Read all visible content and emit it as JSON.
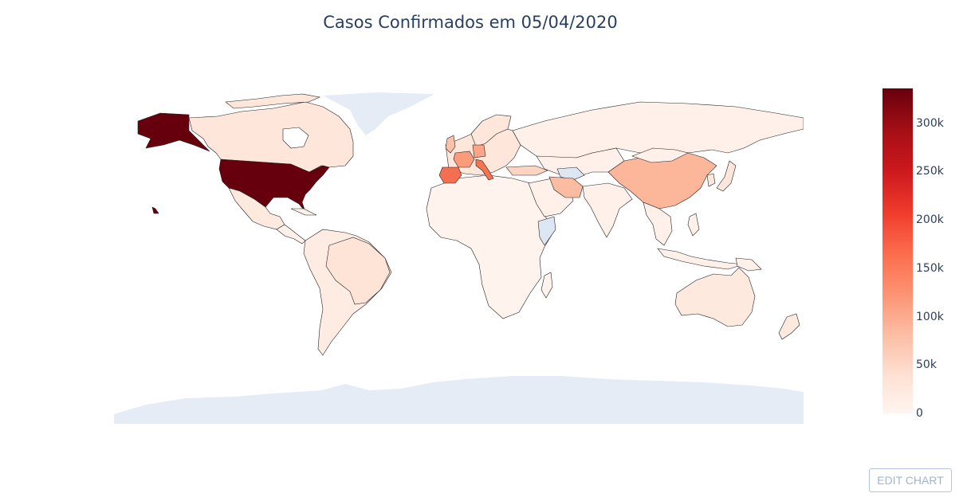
{
  "title": "Casos Confirmados em 05/04/2020",
  "edit_button": "EDIT CHART",
  "colors": {
    "text": "#2a3f5f",
    "no_data": "#e5ecf6",
    "border": "#222222",
    "scale": [
      "#fff5f0",
      "#fee0d2",
      "#fcbba1",
      "#fc9272",
      "#fb6a4a",
      "#ef3b2c",
      "#cb181d",
      "#a50f15",
      "#67000d"
    ]
  },
  "chart_data": {
    "type": "choropleth",
    "title": "Casos Confirmados em 05/04/2020",
    "colorscale": "Reds",
    "zmin": 0,
    "zmax": 336000,
    "colorbar": {
      "ticks": [
        "0",
        "50k",
        "100k",
        "150k",
        "200k",
        "250k",
        "300k"
      ],
      "tick_values": [
        0,
        50000,
        100000,
        150000,
        200000,
        250000,
        300000
      ]
    },
    "regions": [
      {
        "name": "US",
        "value": 336000
      },
      {
        "name": "Spain",
        "value": 131000
      },
      {
        "name": "Italy",
        "value": 128000
      },
      {
        "name": "Germany",
        "value": 100000
      },
      {
        "name": "France",
        "value": 93000
      },
      {
        "name": "China",
        "value": 82000
      },
      {
        "name": "Iran",
        "value": 58000
      },
      {
        "name": "United Kingdom",
        "value": 48000
      },
      {
        "name": "Turkey",
        "value": 27000
      },
      {
        "name": "Switzerland",
        "value": 21000
      },
      {
        "name": "Belgium",
        "value": 20000
      },
      {
        "name": "Netherlands",
        "value": 18000
      },
      {
        "name": "Canada",
        "value": 15000
      },
      {
        "name": "Brazil",
        "value": 11000
      },
      {
        "name": "Russia",
        "value": 5400
      },
      {
        "name": "Australia",
        "value": 5700
      }
    ]
  }
}
